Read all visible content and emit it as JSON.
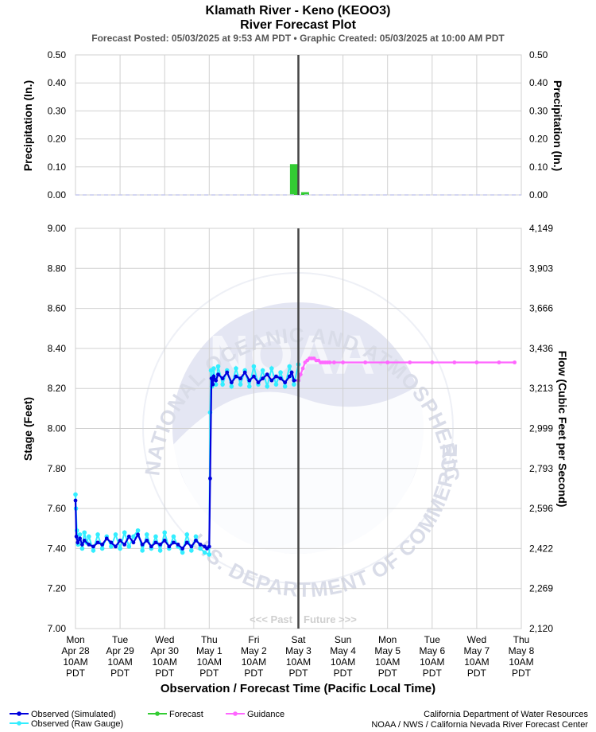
{
  "header": {
    "title": "Klamath River - Keno (KEOO3)",
    "subtitle": "River Forecast Plot",
    "posted": "Forecast Posted: 05/03/2025 at 9:53 AM PDT  •  Graphic Created: 05/03/2025 at 10:00 AM PDT"
  },
  "watermark": {
    "logo_text": "NOAA",
    "ring_top": "NATIONAL OCEANIC AND ATMOSPHERIC ADMINISTRATION",
    "ring_bottom": "U.S. DEPARTMENT OF COMMERCE"
  },
  "past_label": "<<< Past",
  "future_label": "Future >>>",
  "xlabel": "Observation / Forecast Time (Pacific Local Time)",
  "legend": [
    {
      "label": "Observed (Simulated)",
      "color": "#0000dd"
    },
    {
      "label": "Observed (Raw Gauge)",
      "color": "#33eeff"
    },
    {
      "label": "Forecast",
      "color": "#33cc33"
    },
    {
      "label": "Guidance",
      "color": "#ff66ff"
    }
  ],
  "credits": {
    "line1": "California Department of Water Resources",
    "line2": "NOAA / NWS / California Nevada River Forecast Center"
  },
  "chart_data": {
    "type": "line",
    "x_ticks": [
      {
        "day": "Mon",
        "date": "Apr 28",
        "time": "10AM",
        "tz": "PDT"
      },
      {
        "day": "Tue",
        "date": "Apr 29",
        "time": "10AM",
        "tz": "PDT"
      },
      {
        "day": "Wed",
        "date": "Apr 30",
        "time": "10AM",
        "tz": "PDT"
      },
      {
        "day": "Thu",
        "date": "May 1",
        "time": "10AM",
        "tz": "PDT"
      },
      {
        "day": "Fri",
        "date": "May 2",
        "time": "10AM",
        "tz": "PDT"
      },
      {
        "day": "Sat",
        "date": "May 3",
        "time": "10AM",
        "tz": "PDT"
      },
      {
        "day": "Sun",
        "date": "May 4",
        "time": "10AM",
        "tz": "PDT"
      },
      {
        "day": "Mon",
        "date": "May 5",
        "time": "10AM",
        "tz": "PDT"
      },
      {
        "day": "Tue",
        "date": "May 6",
        "time": "10AM",
        "tz": "PDT"
      },
      {
        "day": "Wed",
        "date": "May 7",
        "time": "10AM",
        "tz": "PDT"
      },
      {
        "day": "Thu",
        "date": "May 8",
        "time": "10AM",
        "tz": "PDT"
      }
    ],
    "now_tick_index": 5,
    "precip": {
      "ylabel_left": "Precipitation (In.)",
      "ylabel_right": "Precipitation (In.)",
      "ylim": [
        0,
        0.5
      ],
      "ticks": [
        "0.50",
        "0.40",
        "0.30",
        "0.20",
        "0.10",
        "0.00"
      ],
      "bars": [
        {
          "day": 4.9,
          "value": 0.11,
          "series": "Forecast"
        },
        {
          "day": 5.15,
          "value": 0.01,
          "series": "Forecast"
        }
      ]
    },
    "stage": {
      "ylabel_left": "Stage (Feet)",
      "ylabel_right": "Flow (Cubic Feet per Second)",
      "ylim": [
        7.0,
        9.0
      ],
      "left_ticks": [
        "9.00",
        "8.80",
        "8.60",
        "8.40",
        "8.20",
        "8.00",
        "7.80",
        "7.60",
        "7.40",
        "7.20",
        "7.00"
      ],
      "right_ticks": [
        "4,149",
        "3,903",
        "3,666",
        "3,436",
        "3,213",
        "2,999",
        "2,793",
        "2,596",
        "2,422",
        "2,269",
        "2,120"
      ]
    },
    "series": [
      {
        "name": "Observed (Simulated)",
        "color": "#0000dd",
        "x_days": [
          0.0,
          0.02,
          0.05,
          0.1,
          0.15,
          0.2,
          0.3,
          0.4,
          0.5,
          0.6,
          0.7,
          0.8,
          0.9,
          1.0,
          1.1,
          1.2,
          1.3,
          1.4,
          1.5,
          1.6,
          1.7,
          1.8,
          1.9,
          2.0,
          2.1,
          2.2,
          2.3,
          2.4,
          2.5,
          2.6,
          2.7,
          2.8,
          2.9,
          2.95,
          3.0,
          3.02,
          3.05,
          3.08,
          3.1,
          3.15,
          3.2,
          3.3,
          3.4,
          3.5,
          3.6,
          3.7,
          3.8,
          3.9,
          4.0,
          4.1,
          4.2,
          4.3,
          4.4,
          4.5,
          4.6,
          4.7,
          4.8,
          4.85,
          4.9,
          5.0
        ],
        "y": [
          7.64,
          7.46,
          7.43,
          7.45,
          7.42,
          7.44,
          7.42,
          7.41,
          7.43,
          7.42,
          7.45,
          7.43,
          7.41,
          7.44,
          7.42,
          7.46,
          7.43,
          7.47,
          7.42,
          7.44,
          7.41,
          7.43,
          7.42,
          7.44,
          7.41,
          7.43,
          7.42,
          7.4,
          7.43,
          7.41,
          7.44,
          7.42,
          7.41,
          7.4,
          7.41,
          7.75,
          8.25,
          8.22,
          8.26,
          8.24,
          8.27,
          8.25,
          8.28,
          8.23,
          8.26,
          8.25,
          8.28,
          8.24,
          8.26,
          8.23,
          8.25,
          8.27,
          8.24,
          8.26,
          8.25,
          8.23,
          8.26,
          8.28,
          8.24,
          8.24
        ]
      },
      {
        "name": "Observed (Raw Gauge)",
        "color": "#33eeff",
        "x_days": [
          0.0,
          0.01,
          0.03,
          0.06,
          0.1,
          0.15,
          0.2,
          0.25,
          0.3,
          0.4,
          0.5,
          0.6,
          0.7,
          0.8,
          0.9,
          1.0,
          1.1,
          1.2,
          1.3,
          1.4,
          1.5,
          1.6,
          1.7,
          1.8,
          1.9,
          2.0,
          2.1,
          2.2,
          2.3,
          2.4,
          2.5,
          2.6,
          2.7,
          2.8,
          2.9,
          3.0,
          3.02,
          3.04,
          3.06,
          3.1,
          3.15,
          3.2,
          3.3,
          3.4,
          3.5,
          3.6,
          3.7,
          3.8,
          3.9,
          4.0,
          4.1,
          4.2,
          4.3,
          4.4,
          4.5,
          4.6,
          4.7,
          4.8,
          4.9,
          5.0
        ],
        "y": [
          7.67,
          7.6,
          7.49,
          7.42,
          7.47,
          7.4,
          7.48,
          7.43,
          7.46,
          7.39,
          7.47,
          7.4,
          7.46,
          7.41,
          7.47,
          7.4,
          7.48,
          7.41,
          7.46,
          7.49,
          7.39,
          7.47,
          7.4,
          7.46,
          7.39,
          7.48,
          7.4,
          7.46,
          7.41,
          7.38,
          7.47,
          7.39,
          7.46,
          7.4,
          7.38,
          7.37,
          8.08,
          8.29,
          8.21,
          8.3,
          8.22,
          8.31,
          8.22,
          8.29,
          8.21,
          8.3,
          8.22,
          8.29,
          8.21,
          8.31,
          8.22,
          8.29,
          8.21,
          8.3,
          8.22,
          8.28,
          8.21,
          8.31,
          8.22,
          8.32
        ]
      },
      {
        "name": "Guidance",
        "color": "#ff66ff",
        "x_days": [
          5.0,
          5.05,
          5.1,
          5.15,
          5.2,
          5.25,
          5.3,
          5.35,
          5.4,
          5.45,
          5.5,
          5.55,
          5.6,
          5.65,
          5.7,
          5.8,
          6.0,
          6.5,
          7.0,
          7.5,
          8.0,
          8.5,
          9.0,
          9.5,
          9.85
        ],
        "y": [
          8.24,
          8.27,
          8.3,
          8.33,
          8.34,
          8.35,
          8.35,
          8.35,
          8.34,
          8.34,
          8.33,
          8.33,
          8.33,
          8.33,
          8.33,
          8.33,
          8.33,
          8.33,
          8.33,
          8.33,
          8.33,
          8.33,
          8.33,
          8.33,
          8.33
        ]
      }
    ]
  }
}
